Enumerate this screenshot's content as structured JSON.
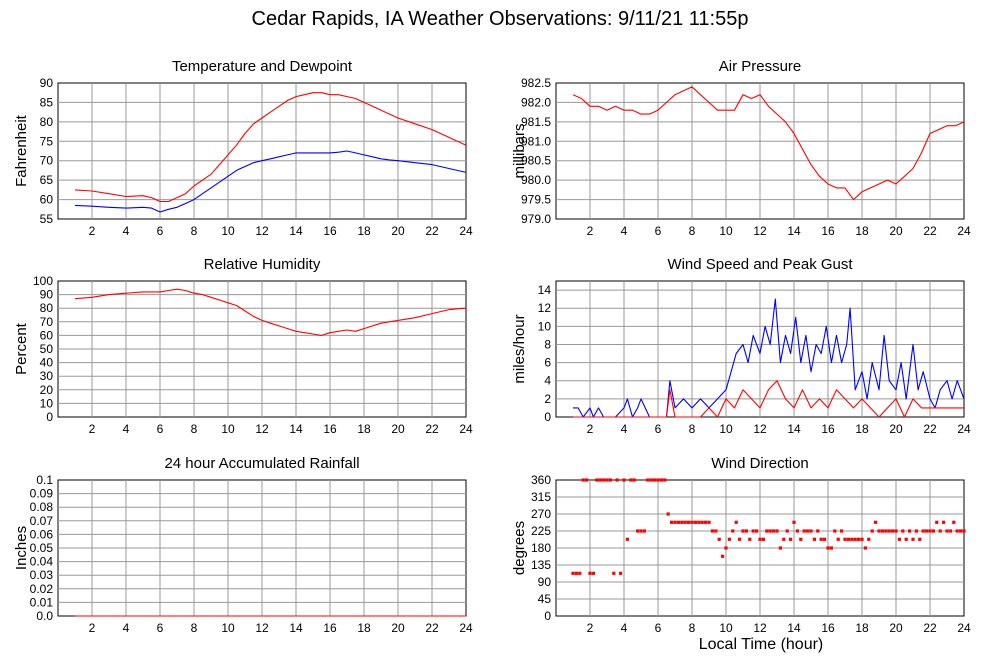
{
  "page": {
    "title": "Cedar Rapids, IA Weather Observations: 9/11/21 11:55p",
    "x_axis_title": "Local Time (hour)"
  },
  "colors": {
    "red": "#ff0000",
    "blue": "#0000ff",
    "grid": "#999999"
  },
  "chart_data": [
    {
      "id": "temp",
      "type": "line",
      "title": "Temperature and Dewpoint",
      "ylabel": "Fahrenheit",
      "xlabel": "",
      "xlim": [
        0,
        24
      ],
      "ylim": [
        55,
        90
      ],
      "xticks": [
        2,
        4,
        6,
        8,
        10,
        12,
        14,
        16,
        18,
        20,
        22,
        24
      ],
      "yticks": [
        55,
        60,
        65,
        70,
        75,
        80,
        85,
        90
      ],
      "ytick_labels": [
        "55",
        "60",
        "65",
        "70",
        "75",
        "80",
        "85",
        "90"
      ],
      "grid": true,
      "series": [
        {
          "color": "#ff0000",
          "x": [
            1.0,
            2.0,
            3.0,
            4.0,
            5.0,
            5.5,
            6.0,
            6.5,
            7.0,
            7.5,
            8.0,
            8.5,
            9.0,
            9.5,
            10.0,
            10.5,
            11.0,
            11.5,
            12.0,
            12.5,
            13.0,
            13.5,
            14.0,
            14.5,
            15.0,
            15.5,
            16.0,
            16.5,
            17.0,
            17.5,
            18.0,
            18.5,
            19.0,
            19.5,
            20.0,
            21.0,
            22.0,
            23.0,
            24.0
          ],
          "y": [
            62.5,
            62.2,
            61.5,
            60.8,
            61.0,
            60.5,
            59.5,
            59.5,
            60.5,
            61.5,
            63.5,
            65.0,
            66.5,
            69.0,
            71.5,
            74.0,
            77.0,
            79.5,
            81.0,
            82.5,
            84.0,
            85.5,
            86.5,
            87.0,
            87.5,
            87.5,
            87.0,
            87.0,
            86.5,
            86.0,
            85.0,
            84.0,
            83.0,
            82.0,
            81.0,
            79.5,
            78.0,
            76.0,
            74.0
          ]
        },
        {
          "color": "#0000ff",
          "x": [
            1.0,
            2.0,
            3.0,
            4.0,
            5.0,
            5.5,
            6.0,
            6.5,
            7.0,
            7.5,
            8.0,
            8.5,
            9.0,
            9.5,
            10.0,
            10.5,
            11.0,
            11.5,
            12.0,
            12.5,
            13.0,
            13.5,
            14.0,
            14.5,
            15.0,
            15.5,
            16.0,
            16.5,
            17.0,
            17.5,
            18.0,
            18.5,
            19.0,
            19.5,
            20.0,
            21.0,
            22.0,
            23.0,
            24.0
          ],
          "y": [
            58.5,
            58.3,
            58.0,
            57.8,
            58.0,
            57.8,
            56.8,
            57.5,
            58.0,
            59.0,
            60.0,
            61.5,
            63.0,
            64.5,
            66.0,
            67.5,
            68.5,
            69.5,
            70.0,
            70.5,
            71.0,
            71.5,
            72.0,
            72.0,
            72.0,
            72.0,
            72.0,
            72.2,
            72.5,
            72.0,
            71.5,
            71.0,
            70.5,
            70.2,
            70.0,
            69.5,
            69.0,
            68.0,
            67.0
          ]
        }
      ]
    },
    {
      "id": "pressure",
      "type": "line",
      "title": "Air Pressure",
      "ylabel": "millibars",
      "xlabel": "",
      "xlim": [
        0,
        24
      ],
      "ylim": [
        979.0,
        982.5
      ],
      "xticks": [
        2,
        4,
        6,
        8,
        10,
        12,
        14,
        16,
        18,
        20,
        22,
        24
      ],
      "yticks": [
        979.0,
        979.5,
        980.0,
        980.5,
        981.0,
        981.5,
        982.0,
        982.5
      ],
      "ytick_labels": [
        "979.0",
        "979.5",
        "980.0",
        "980.5",
        "981.0",
        "981.5",
        "982.0",
        "982.5"
      ],
      "grid": true,
      "series": [
        {
          "color": "#ff0000",
          "x": [
            1.0,
            1.5,
            2.0,
            2.5,
            3.0,
            3.5,
            4.0,
            4.5,
            5.0,
            5.5,
            6.0,
            6.5,
            7.0,
            7.5,
            8.0,
            8.5,
            9.0,
            9.5,
            10.0,
            10.5,
            11.0,
            11.5,
            12.0,
            12.5,
            13.0,
            13.5,
            14.0,
            14.5,
            15.0,
            15.5,
            16.0,
            16.5,
            17.0,
            17.5,
            18.0,
            18.5,
            19.0,
            19.5,
            20.0,
            20.5,
            21.0,
            21.5,
            22.0,
            22.5,
            23.0,
            23.5,
            24.0
          ],
          "y": [
            982.2,
            982.1,
            981.9,
            981.9,
            981.8,
            981.9,
            981.8,
            981.8,
            981.7,
            981.7,
            981.8,
            982.0,
            982.2,
            982.3,
            982.4,
            982.2,
            982.0,
            981.8,
            981.8,
            981.8,
            982.2,
            982.1,
            982.2,
            981.9,
            981.7,
            981.5,
            981.2,
            980.8,
            980.4,
            980.1,
            979.9,
            979.8,
            979.8,
            979.5,
            979.7,
            979.8,
            979.9,
            980.0,
            979.9,
            980.1,
            980.3,
            980.7,
            981.2,
            981.3,
            981.4,
            981.4,
            981.5
          ]
        }
      ]
    },
    {
      "id": "humidity",
      "type": "line",
      "title": "Relative Humidity",
      "ylabel": "Percent",
      "xlabel": "",
      "xlim": [
        0,
        24
      ],
      "ylim": [
        0,
        100
      ],
      "xticks": [
        2,
        4,
        6,
        8,
        10,
        12,
        14,
        16,
        18,
        20,
        22,
        24
      ],
      "yticks": [
        0,
        10,
        20,
        30,
        40,
        50,
        60,
        70,
        80,
        90,
        100
      ],
      "ytick_labels": [
        "0",
        "10",
        "20",
        "30",
        "40",
        "50",
        "60",
        "70",
        "80",
        "90",
        "100"
      ],
      "grid": true,
      "series": [
        {
          "color": "#ff0000",
          "x": [
            1.0,
            2.0,
            3.0,
            4.0,
            5.0,
            6.0,
            6.5,
            7.0,
            7.5,
            8.0,
            8.5,
            9.0,
            9.5,
            10.0,
            10.5,
            11.0,
            11.5,
            12.0,
            12.5,
            13.0,
            13.5,
            14.0,
            14.5,
            15.0,
            15.5,
            16.0,
            16.5,
            17.0,
            17.5,
            18.0,
            19.0,
            20.0,
            21.0,
            22.0,
            23.0,
            24.0
          ],
          "y": [
            87,
            88,
            90,
            91,
            92,
            92,
            93,
            94,
            93,
            91,
            90,
            88,
            86,
            84,
            82,
            78,
            74,
            71,
            69,
            67,
            65,
            63,
            62,
            61,
            60,
            62,
            63,
            64,
            63,
            65,
            69,
            71,
            73,
            76,
            79,
            80
          ]
        }
      ]
    },
    {
      "id": "wind",
      "type": "line",
      "title": "Wind Speed and Peak Gust",
      "ylabel": "miles/hour",
      "xlabel": "",
      "xlim": [
        0,
        24
      ],
      "ylim": [
        0,
        15
      ],
      "xticks": [
        2,
        4,
        6,
        8,
        10,
        12,
        14,
        16,
        18,
        20,
        22,
        24
      ],
      "yticks": [
        0,
        2,
        4,
        6,
        8,
        10,
        12,
        14
      ],
      "ytick_labels": [
        "0",
        "2",
        "4",
        "6",
        "8",
        "10",
        "12",
        "14"
      ],
      "grid": true,
      "series": [
        {
          "color": "#0000ff",
          "x": [
            1.0,
            1.3,
            1.6,
            2.0,
            2.2,
            2.5,
            2.8,
            3.0,
            3.5,
            4.0,
            4.2,
            4.5,
            4.8,
            5.0,
            5.5,
            6.0,
            6.5,
            6.7,
            7.0,
            7.5,
            8.0,
            8.5,
            9.0,
            9.5,
            10.0,
            10.3,
            10.6,
            11.0,
            11.3,
            11.6,
            12.0,
            12.3,
            12.6,
            12.9,
            13.2,
            13.5,
            13.8,
            14.1,
            14.4,
            14.7,
            15.0,
            15.3,
            15.6,
            15.9,
            16.2,
            16.5,
            16.8,
            17.1,
            17.3,
            17.6,
            18.0,
            18.3,
            18.6,
            19.0,
            19.3,
            19.6,
            20.0,
            20.3,
            20.6,
            21.0,
            21.3,
            21.6,
            22.0,
            22.3,
            22.6,
            23.0,
            23.3,
            23.6,
            24.0
          ],
          "y": [
            1,
            1,
            0,
            1,
            0,
            1,
            0,
            0,
            0,
            1,
            2,
            0,
            1,
            2,
            0,
            0,
            0,
            4,
            1,
            2,
            1,
            2,
            1,
            2,
            3,
            5,
            7,
            8,
            6,
            9,
            7,
            10,
            8,
            13,
            6,
            9,
            7,
            11,
            6,
            9,
            5,
            8,
            7,
            10,
            6,
            9,
            6,
            8,
            12,
            3,
            5,
            2,
            6,
            3,
            9,
            4,
            3,
            6,
            2,
            8,
            3,
            5,
            2,
            1,
            3,
            4,
            2,
            4,
            2
          ]
        },
        {
          "color": "#ff0000",
          "x": [
            1.0,
            2.0,
            3.0,
            4.0,
            5.0,
            6.0,
            6.5,
            6.7,
            7.0,
            7.5,
            8.0,
            8.5,
            9.0,
            9.5,
            10.0,
            10.5,
            11.0,
            11.5,
            12.0,
            12.5,
            13.0,
            13.5,
            14.0,
            14.5,
            15.0,
            15.5,
            16.0,
            16.5,
            17.0,
            17.5,
            18.0,
            18.5,
            19.0,
            19.5,
            20.0,
            20.5,
            21.0,
            21.5,
            22.0,
            23.0,
            24.0
          ],
          "y": [
            0,
            0,
            0,
            0,
            0,
            0,
            0,
            3,
            0,
            0,
            0,
            0,
            1,
            0,
            2,
            1,
            3,
            2,
            1,
            3,
            4,
            2,
            1,
            3,
            1,
            2,
            1,
            3,
            2,
            1,
            2,
            1,
            0,
            1,
            2,
            0,
            2,
            1,
            1,
            1,
            1
          ]
        }
      ]
    },
    {
      "id": "rain",
      "type": "line",
      "title": "24 hour Accumulated Rainfall",
      "ylabel": "Inches",
      "xlabel": "",
      "xlim": [
        0,
        24
      ],
      "ylim": [
        0,
        0.1
      ],
      "xticks": [
        2,
        4,
        6,
        8,
        10,
        12,
        14,
        16,
        18,
        20,
        22,
        24
      ],
      "yticks": [
        0,
        0.01,
        0.02,
        0.03,
        0.04,
        0.05,
        0.06,
        0.07,
        0.08,
        0.09,
        0.1
      ],
      "ytick_labels": [
        "0.0",
        "0.01",
        "0.02",
        "0.03",
        "0.04",
        "0.05",
        "0.06",
        "0.07",
        "0.08",
        "0.09",
        "0.1"
      ],
      "grid": true,
      "series": [
        {
          "color": "#ff0000",
          "x": [
            1.0,
            24.0
          ],
          "y": [
            0,
            0
          ]
        }
      ]
    },
    {
      "id": "direction",
      "type": "scatter",
      "title": "Wind Direction",
      "ylabel": "degrees",
      "xlabel": "Local Time (hour)",
      "xlim": [
        0,
        24
      ],
      "ylim": [
        0,
        360
      ],
      "xticks": [
        2,
        4,
        6,
        8,
        10,
        12,
        14,
        16,
        18,
        20,
        22,
        24
      ],
      "yticks": [
        0,
        45,
        90,
        135,
        180,
        225,
        270,
        315,
        360
      ],
      "ytick_labels": [
        "0",
        "45",
        "90",
        "135",
        "180",
        "225",
        "270",
        "315",
        "360"
      ],
      "grid": true,
      "series": [
        {
          "color": "#ff0000",
          "x": [
            1.0,
            1.2,
            1.4,
            1.6,
            1.8,
            2.0,
            2.2,
            2.4,
            2.6,
            2.8,
            3.0,
            3.2,
            3.4,
            3.6,
            3.8,
            4.0,
            4.2,
            4.4,
            4.6,
            4.8,
            5.0,
            5.2,
            5.4,
            5.6,
            5.8,
            6.0,
            6.2,
            6.4,
            6.6,
            6.8,
            7.0,
            7.2,
            7.4,
            7.6,
            7.8,
            8.0,
            8.2,
            8.4,
            8.6,
            8.8,
            9.0,
            9.2,
            9.4,
            9.6,
            9.8,
            10.0,
            10.2,
            10.4,
            10.6,
            10.8,
            11.0,
            11.2,
            11.4,
            11.6,
            11.8,
            12.0,
            12.2,
            12.4,
            12.6,
            12.8,
            13.0,
            13.2,
            13.4,
            13.6,
            13.8,
            14.0,
            14.2,
            14.4,
            14.6,
            14.8,
            15.0,
            15.2,
            15.4,
            15.6,
            15.8,
            16.0,
            16.2,
            16.4,
            16.6,
            16.8,
            17.0,
            17.2,
            17.4,
            17.6,
            17.8,
            18.0,
            18.2,
            18.4,
            18.6,
            18.8,
            19.0,
            19.2,
            19.4,
            19.6,
            19.8,
            20.0,
            20.2,
            20.4,
            20.6,
            20.8,
            21.0,
            21.2,
            21.4,
            21.6,
            21.8,
            22.0,
            22.2,
            22.4,
            22.6,
            22.8,
            23.0,
            23.2,
            23.4,
            23.6,
            23.8,
            24.0
          ],
          "y": [
            113,
            113,
            113,
            360,
            360,
            113,
            113,
            360,
            360,
            360,
            360,
            360,
            113,
            360,
            113,
            360,
            203,
            360,
            360,
            225,
            225,
            225,
            360,
            360,
            360,
            360,
            360,
            360,
            270,
            248,
            248,
            248,
            248,
            248,
            248,
            248,
            248,
            248,
            248,
            248,
            248,
            225,
            225,
            203,
            158,
            180,
            203,
            225,
            248,
            203,
            225,
            225,
            203,
            225,
            225,
            203,
            203,
            225,
            225,
            225,
            225,
            180,
            203,
            225,
            203,
            248,
            225,
            203,
            225,
            225,
            225,
            203,
            225,
            203,
            203,
            180,
            180,
            225,
            203,
            225,
            203,
            203,
            203,
            203,
            203,
            203,
            180,
            203,
            225,
            248,
            225,
            225,
            225,
            225,
            225,
            225,
            203,
            225,
            203,
            225,
            203,
            225,
            203,
            225,
            225,
            225,
            225,
            248,
            225,
            248,
            225,
            225,
            248,
            225,
            225,
            225
          ]
        }
      ]
    }
  ]
}
